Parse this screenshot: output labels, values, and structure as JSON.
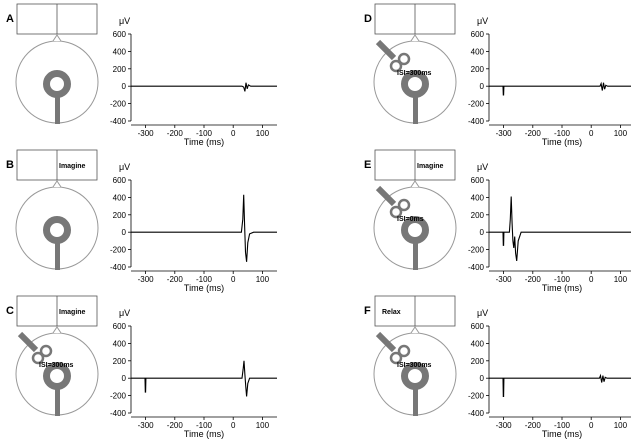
{
  "panels": [
    {
      "letter": "A",
      "box_text": "",
      "isi_text": "",
      "head_icon": "electrode-head-icon",
      "coil": "none"
    },
    {
      "letter": "B",
      "box_text": "Imagine",
      "isi_text": "",
      "head_icon": "electrode-head-icon",
      "coil": "none"
    },
    {
      "letter": "C",
      "box_text": "Imagine",
      "isi_text": "ISI=300ms",
      "head_icon": "electrode-head-icon",
      "coil": "tms-coil-icon"
    },
    {
      "letter": "D",
      "box_text": "",
      "isi_text": "ISI=300ms",
      "head_icon": "electrode-head-icon",
      "coil": "tms-coil-icon"
    },
    {
      "letter": "E",
      "box_text": "Imagine",
      "isi_text": "ISI=0ms",
      "head_icon": "electrode-head-icon",
      "coil": "tms-coil-icon"
    },
    {
      "letter": "F",
      "box_text": "Relax",
      "isi_text": "ISI=300ms",
      "head_icon": "electrode-head-icon",
      "coil": "tms-coil-icon"
    }
  ],
  "chart_data": [
    {
      "panel": "A",
      "type": "line",
      "ylabel": "μV",
      "xlabel": "Time (ms)",
      "xlim": [
        -350,
        150
      ],
      "ylim": [
        -400,
        600
      ],
      "xticks": [
        -300,
        -200,
        -100,
        0,
        100
      ],
      "yticks": [
        600,
        400,
        200,
        0,
        -200,
        -400
      ],
      "series": [
        {
          "x": [
            -350,
            -300,
            0,
            30,
            36,
            40,
            44,
            48,
            52,
            60,
            150
          ],
          "y": [
            0,
            0,
            0,
            0,
            -10,
            -60,
            40,
            -30,
            15,
            0,
            0
          ]
        }
      ]
    },
    {
      "panel": "B",
      "type": "line",
      "ylabel": "μV",
      "xlabel": "Time (ms)",
      "xlim": [
        -350,
        150
      ],
      "ylim": [
        -400,
        600
      ],
      "xticks": [
        -300,
        -200,
        -100,
        0,
        100
      ],
      "yticks": [
        600,
        400,
        200,
        0,
        -200,
        -400
      ],
      "series": [
        {
          "x": [
            -350,
            -300,
            0,
            28,
            33,
            36,
            39,
            42,
            46,
            50,
            56,
            70,
            150
          ],
          "y": [
            0,
            0,
            0,
            0,
            150,
            430,
            80,
            -230,
            -340,
            -120,
            -20,
            0,
            0
          ]
        }
      ]
    },
    {
      "panel": "C",
      "type": "line",
      "ylabel": "μV",
      "xlabel": "Time (ms)",
      "xlim": [
        -350,
        150
      ],
      "ylim": [
        -400,
        600
      ],
      "xticks": [
        -300,
        -200,
        -100,
        0,
        100
      ],
      "yticks": [
        600,
        400,
        200,
        0,
        -200,
        -400
      ],
      "series": [
        {
          "x": [
            -350,
            -302,
            -301,
            -300,
            -299,
            -296,
            0,
            30,
            34,
            37,
            40,
            43,
            46,
            50,
            56,
            150
          ],
          "y": [
            0,
            0,
            -160,
            -160,
            0,
            0,
            0,
            0,
            100,
            200,
            40,
            -100,
            -210,
            -60,
            0,
            0
          ]
        }
      ]
    },
    {
      "panel": "D",
      "type": "line",
      "ylabel": "μV",
      "xlabel": "Time (ms)",
      "xlim": [
        -350,
        150
      ],
      "ylim": [
        -400,
        600
      ],
      "xticks": [
        -300,
        -200,
        -100,
        0,
        100
      ],
      "yticks": [
        600,
        400,
        200,
        0,
        -200,
        -400
      ],
      "series": [
        {
          "x": [
            -350,
            -302,
            -301,
            -300,
            -299,
            -296,
            0,
            30,
            34,
            38,
            42,
            46,
            50,
            56,
            150
          ],
          "y": [
            0,
            0,
            -100,
            -100,
            0,
            0,
            0,
            0,
            30,
            -50,
            40,
            -35,
            10,
            0,
            0
          ]
        }
      ]
    },
    {
      "panel": "E",
      "type": "line",
      "ylabel": "μV",
      "xlabel": "Time (ms)",
      "xlim": [
        -350,
        150
      ],
      "ylim": [
        -400,
        600
      ],
      "xticks": [
        -300,
        -200,
        -100,
        0,
        100
      ],
      "yticks": [
        600,
        400,
        200,
        0,
        -200,
        -400
      ],
      "series": [
        {
          "x": [
            -350,
            -302,
            -301,
            -300,
            -299,
            -280,
            -277,
            -274,
            -271,
            -268,
            -265,
            -262,
            -259,
            -255,
            -250,
            -240,
            150
          ],
          "y": [
            0,
            0,
            -150,
            -150,
            0,
            0,
            150,
            410,
            100,
            -100,
            -180,
            -50,
            -240,
            -330,
            -100,
            0,
            0
          ]
        }
      ]
    },
    {
      "panel": "F",
      "type": "line",
      "ylabel": "μV",
      "xlabel": "Time (ms)",
      "xlim": [
        -350,
        150
      ],
      "ylim": [
        -400,
        600
      ],
      "xticks": [
        -300,
        -200,
        -100,
        0,
        100
      ],
      "yticks": [
        600,
        400,
        200,
        0,
        -200,
        -400
      ],
      "series": [
        {
          "x": [
            -350,
            -302,
            -301,
            -300,
            -299,
            -296,
            0,
            28,
            32,
            36,
            40,
            44,
            48,
            54,
            150
          ],
          "y": [
            0,
            0,
            -210,
            -210,
            0,
            0,
            0,
            0,
            30,
            -50,
            30,
            -40,
            10,
            0,
            0
          ]
        }
      ]
    }
  ]
}
